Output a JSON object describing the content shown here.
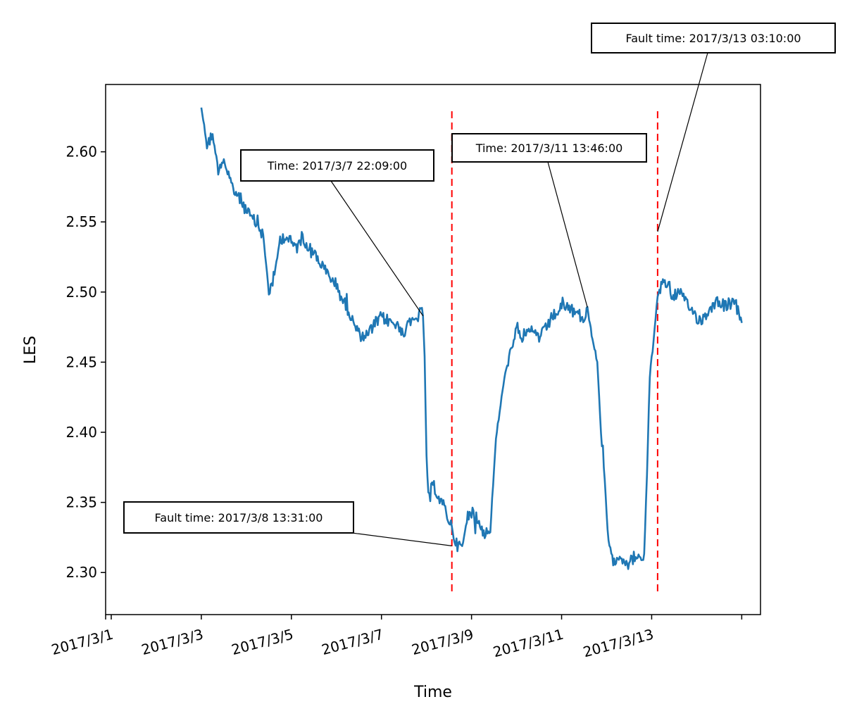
{
  "chart_data": {
    "type": "line",
    "title": "",
    "xlabel": "Time",
    "ylabel": "LES",
    "xlim": [
      "2017-02-28T21:00",
      "2017-03-15T10:00"
    ],
    "ylim": [
      2.27,
      2.648
    ],
    "x_ticks": [
      "2017/3/1",
      "2017/3/3",
      "2017/3/5",
      "2017/3/7",
      "2017/3/9",
      "2017/3/11",
      "2017/3/13"
    ],
    "y_ticks": [
      "2.30",
      "2.35",
      "2.40",
      "2.45",
      "2.50",
      "2.55",
      "2.60"
    ],
    "grid": false,
    "legend": "none",
    "series": [
      {
        "color": "#1f77b4",
        "points": [
          [
            "2017-03-03T00:00",
            2.632
          ],
          [
            "2017-03-03T03:00",
            2.605
          ],
          [
            "2017-03-03T06:00",
            2.612
          ],
          [
            "2017-03-03T09:00",
            2.588
          ],
          [
            "2017-03-03T12:00",
            2.595
          ],
          [
            "2017-03-03T15:00",
            2.578
          ],
          [
            "2017-03-03T18:00",
            2.572
          ],
          [
            "2017-03-03T21:00",
            2.566
          ],
          [
            "2017-03-04T00:00",
            2.558
          ],
          [
            "2017-03-04T03:00",
            2.552
          ],
          [
            "2017-03-04T06:00",
            2.548
          ],
          [
            "2017-03-04T09:00",
            2.54
          ],
          [
            "2017-03-04T12:00",
            2.5
          ],
          [
            "2017-03-04T15:00",
            2.512
          ],
          [
            "2017-03-04T18:00",
            2.538
          ],
          [
            "2017-03-04T21:00",
            2.54
          ],
          [
            "2017-03-05T00:00",
            2.535
          ],
          [
            "2017-03-05T03:00",
            2.532
          ],
          [
            "2017-03-05T06:00",
            2.54
          ],
          [
            "2017-03-05T09:00",
            2.532
          ],
          [
            "2017-03-05T12:00",
            2.528
          ],
          [
            "2017-03-05T15:00",
            2.522
          ],
          [
            "2017-03-05T18:00",
            2.515
          ],
          [
            "2017-03-05T21:00",
            2.51
          ],
          [
            "2017-03-06T00:00",
            2.505
          ],
          [
            "2017-03-06T03:00",
            2.495
          ],
          [
            "2017-03-06T06:00",
            2.488
          ],
          [
            "2017-03-06T09:00",
            2.478
          ],
          [
            "2017-03-06T12:00",
            2.47
          ],
          [
            "2017-03-06T15:00",
            2.468
          ],
          [
            "2017-03-06T18:00",
            2.472
          ],
          [
            "2017-03-06T21:00",
            2.478
          ],
          [
            "2017-03-07T00:00",
            2.482
          ],
          [
            "2017-03-07T03:00",
            2.48
          ],
          [
            "2017-03-07T06:00",
            2.478
          ],
          [
            "2017-03-07T09:00",
            2.475
          ],
          [
            "2017-03-07T12:00",
            2.472
          ],
          [
            "2017-03-07T15:00",
            2.478
          ],
          [
            "2017-03-07T18:00",
            2.48
          ],
          [
            "2017-03-07T21:00",
            2.486
          ],
          [
            "2017-03-07T22:09",
            2.483
          ],
          [
            "2017-03-07T23:00",
            2.455
          ],
          [
            "2017-03-08T00:00",
            2.38
          ],
          [
            "2017-03-08T01:00",
            2.356
          ],
          [
            "2017-03-08T04:00",
            2.362
          ],
          [
            "2017-03-08T07:00",
            2.352
          ],
          [
            "2017-03-08T10:00",
            2.345
          ],
          [
            "2017-03-08T13:31",
            2.332
          ],
          [
            "2017-03-08T16:00",
            2.32
          ],
          [
            "2017-03-08T19:00",
            2.318
          ],
          [
            "2017-03-08T22:00",
            2.34
          ],
          [
            "2017-03-09T01:00",
            2.344
          ],
          [
            "2017-03-09T04:00",
            2.335
          ],
          [
            "2017-03-09T07:00",
            2.328
          ],
          [
            "2017-03-09T10:00",
            2.33
          ],
          [
            "2017-03-09T13:00",
            2.395
          ],
          [
            "2017-03-09T16:00",
            2.425
          ],
          [
            "2017-03-09T19:00",
            2.45
          ],
          [
            "2017-03-09T22:00",
            2.46
          ],
          [
            "2017-03-10T00:00",
            2.475
          ],
          [
            "2017-03-10T03:00",
            2.468
          ],
          [
            "2017-03-10T06:00",
            2.47
          ],
          [
            "2017-03-10T09:00",
            2.472
          ],
          [
            "2017-03-10T12:00",
            2.468
          ],
          [
            "2017-03-10T15:00",
            2.472
          ],
          [
            "2017-03-10T18:00",
            2.48
          ],
          [
            "2017-03-10T21:00",
            2.485
          ],
          [
            "2017-03-11T00:00",
            2.488
          ],
          [
            "2017-03-11T03:00",
            2.49
          ],
          [
            "2017-03-11T06:00",
            2.486
          ],
          [
            "2017-03-11T09:00",
            2.484
          ],
          [
            "2017-03-11T12:00",
            2.48
          ],
          [
            "2017-03-11T13:46",
            2.488
          ],
          [
            "2017-03-11T16:00",
            2.47
          ],
          [
            "2017-03-11T19:00",
            2.45
          ],
          [
            "2017-03-11T21:00",
            2.4
          ],
          [
            "2017-03-11T23:00",
            2.365
          ],
          [
            "2017-03-12T01:00",
            2.32
          ],
          [
            "2017-03-12T03:00",
            2.308
          ],
          [
            "2017-03-12T06:00",
            2.312
          ],
          [
            "2017-03-12T09:00",
            2.31
          ],
          [
            "2017-03-12T12:00",
            2.306
          ],
          [
            "2017-03-12T15:00",
            2.312
          ],
          [
            "2017-03-12T18:00",
            2.308
          ],
          [
            "2017-03-12T20:00",
            2.312
          ],
          [
            "2017-03-12T21:30",
            2.37
          ],
          [
            "2017-03-12T23:00",
            2.44
          ],
          [
            "2017-03-13T01:00",
            2.465
          ],
          [
            "2017-03-13T03:10",
            2.498
          ],
          [
            "2017-03-13T06:00",
            2.508
          ],
          [
            "2017-03-13T09:00",
            2.505
          ],
          [
            "2017-03-13T12:00",
            2.498
          ],
          [
            "2017-03-13T15:00",
            2.5
          ],
          [
            "2017-03-13T18:00",
            2.492
          ],
          [
            "2017-03-13T21:00",
            2.488
          ],
          [
            "2017-03-14T00:00",
            2.482
          ],
          [
            "2017-03-14T03:00",
            2.48
          ],
          [
            "2017-03-14T06:00",
            2.486
          ],
          [
            "2017-03-14T09:00",
            2.492
          ],
          [
            "2017-03-14T12:00",
            2.494
          ],
          [
            "2017-03-14T15:00",
            2.49
          ],
          [
            "2017-03-14T18:00",
            2.492
          ],
          [
            "2017-03-14T21:00",
            2.49
          ],
          [
            "2017-03-15T00:00",
            2.478
          ]
        ]
      }
    ],
    "fault_lines": [
      {
        "time": "2017-03-08T13:31",
        "color": "#ff0000"
      },
      {
        "time": "2017-03-13T03:10",
        "color": "#ff0000"
      }
    ],
    "annotations": [
      {
        "text": "Time: 2017/3/7 22:09:00",
        "target": [
          "2017-03-07T22:09",
          2.483
        ]
      },
      {
        "text": "Fault time: 2017/3/8 13:31:00",
        "target": [
          "2017-03-08T13:31",
          2.319
        ]
      },
      {
        "text": "Time: 2017/3/11 13:46:00",
        "target": [
          "2017-03-11T13:46",
          2.489
        ]
      },
      {
        "text": "Fault time: 2017/3/13 03:10:00",
        "target": [
          "2017-03-13T03:10",
          2.543
        ]
      }
    ]
  }
}
